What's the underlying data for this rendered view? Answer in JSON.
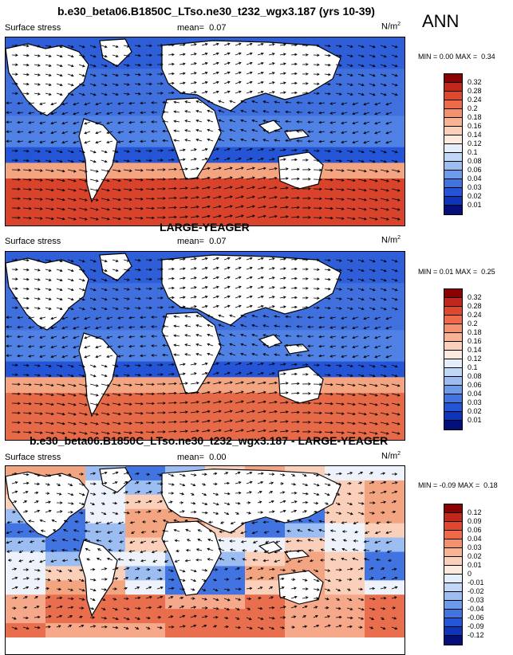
{
  "season": "ANN",
  "chart_data": [
    {
      "type": "heatmap",
      "title": "b.e30_beta06.B1850C_LTso.ne30_t232_wgx3.187 (yrs 10-39)",
      "variable": "Surface stress",
      "mean_label": "mean=",
      "mean": "0.07",
      "units": "N/m",
      "units_exp": "2",
      "min_label": "MIN =",
      "min": "0.00",
      "max_label": "MAX =",
      "max": "0.34",
      "levels": [
        "0.32",
        "0.28",
        "0.24",
        "0.2",
        "0.18",
        "0.16",
        "0.14",
        "0.12",
        "0.1",
        "0.08",
        "0.06",
        "0.04",
        "0.03",
        "0.02",
        "0.01"
      ],
      "colors": [
        "#8b0000",
        "#c0281e",
        "#e0482e",
        "#ef6a48",
        "#f5906e",
        "#f8b294",
        "#fbd0ba",
        "#fdeade",
        "#e4eefb",
        "#c2d6f6",
        "#9bbdf1",
        "#6e9be9",
        "#4174e0",
        "#2455d6",
        "#0d34bb",
        "#050f7a"
      ],
      "vectors": "surface stress vectors overlaid"
    },
    {
      "type": "heatmap",
      "title": "LARGE-YEAGER",
      "variable": "Surface stress",
      "mean_label": "mean=",
      "mean": "0.07",
      "units": "N/m",
      "units_exp": "2",
      "min_label": "MIN =",
      "min": "0.01",
      "max_label": "MAX =",
      "max": "0.25",
      "levels": [
        "0.32",
        "0.28",
        "0.24",
        "0.2",
        "0.18",
        "0.16",
        "0.14",
        "0.12",
        "0.1",
        "0.08",
        "0.06",
        "0.04",
        "0.03",
        "0.02",
        "0.01"
      ],
      "colors": [
        "#8b0000",
        "#c0281e",
        "#e0482e",
        "#ef6a48",
        "#f5906e",
        "#f8b294",
        "#fbd0ba",
        "#fdeade",
        "#e4eefb",
        "#c2d6f6",
        "#9bbdf1",
        "#6e9be9",
        "#4174e0",
        "#2455d6",
        "#0d34bb",
        "#050f7a"
      ],
      "vectors": "surface stress vectors overlaid"
    },
    {
      "type": "heatmap",
      "title": "b.e30_beta06.B1850C_LTso.ne30_t232_wgx3.187 - LARGE-YEAGER",
      "variable": "Surface stress",
      "mean_label": "mean=",
      "mean": "0.00",
      "units": "N/m",
      "units_exp": "2",
      "min_label": "MIN =",
      "min": "-0.09",
      "max_label": "MAX =",
      "max": "0.18",
      "levels": [
        "0.12",
        "0.09",
        "0.06",
        "0.04",
        "0.03",
        "0.02",
        "0.01",
        "0",
        "-0.01",
        "-0.02",
        "-0.03",
        "-0.04",
        "-0.06",
        "-0.09",
        "-0.12"
      ],
      "colors": [
        "#8b0000",
        "#c0281e",
        "#e0482e",
        "#ef6a48",
        "#f5906e",
        "#f8b294",
        "#fbd0ba",
        "#fdeade",
        "#e4eefb",
        "#c2d6f6",
        "#9bbdf1",
        "#6e9be9",
        "#4174e0",
        "#2455d6",
        "#0d34bb",
        "#050f7a"
      ],
      "vectors": "surface stress difference vectors overlaid"
    }
  ]
}
